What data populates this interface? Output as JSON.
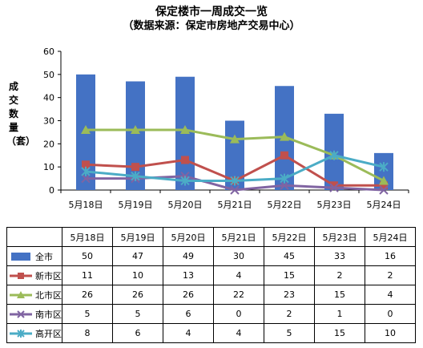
{
  "chart_data": {
    "type": "bar",
    "title": "保定楼市一周成交一览",
    "subtitle": "（数据来源：保定市房地产交易中心）",
    "ylabel": "成交数量（套）",
    "xlabel": "",
    "ylim": [
      0,
      60
    ],
    "yticks": [
      "0",
      "10",
      "20",
      "30",
      "40",
      "50",
      "60"
    ],
    "grid": false,
    "categories": [
      "5月18日",
      "5月19日",
      "5月20日",
      "5月21日",
      "5月22日",
      "5月23日",
      "5月24日"
    ],
    "series": [
      {
        "name": "全市",
        "kind": "bar",
        "color": "#4472C4",
        "marker": "square",
        "values": [
          50,
          47,
          49,
          30,
          45,
          33,
          16
        ]
      },
      {
        "name": "新市区",
        "kind": "line",
        "color": "#C0504D",
        "marker": "square",
        "values": [
          11,
          10,
          13,
          4,
          15,
          2,
          2
        ]
      },
      {
        "name": "北市区",
        "kind": "line",
        "color": "#9BBB59",
        "marker": "triangle",
        "values": [
          26,
          26,
          26,
          22,
          23,
          15,
          4
        ]
      },
      {
        "name": "南市区",
        "kind": "line",
        "color": "#8064A2",
        "marker": "x",
        "values": [
          5,
          5,
          6,
          0,
          2,
          1,
          0
        ]
      },
      {
        "name": "高开区",
        "kind": "line",
        "color": "#4BACC6",
        "marker": "star",
        "values": [
          8,
          6,
          4,
          4,
          5,
          15,
          10
        ]
      }
    ],
    "table": true
  }
}
